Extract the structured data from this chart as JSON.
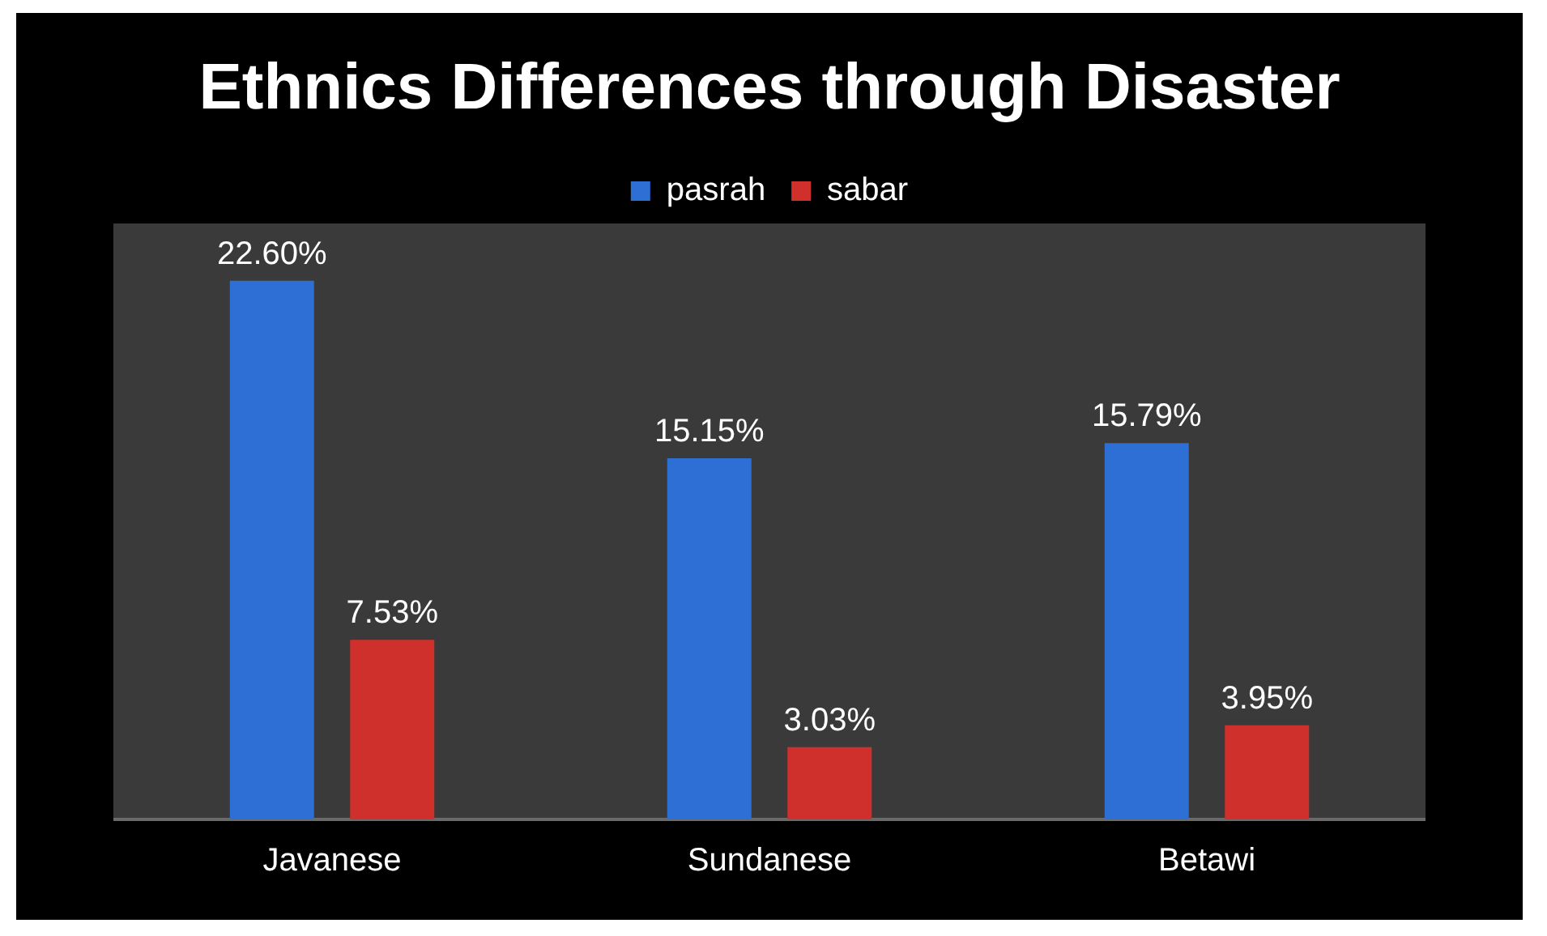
{
  "chart_data": {
    "type": "bar",
    "title": "Ethnics Differences through Disaster",
    "categories": [
      "Javanese",
      "Sundanese",
      "Betawi"
    ],
    "legend": "top",
    "series": [
      {
        "name": "pasrah",
        "color": "#2e6fd6",
        "values": [
          22.6,
          15.15,
          15.79
        ],
        "value_labels": [
          "22.60%",
          "15.15%",
          "15.79%"
        ]
      },
      {
        "name": "sabar",
        "color": "#d0302c",
        "values": [
          7.53,
          3.03,
          3.95
        ],
        "value_labels": [
          "7.53%",
          "3.03%",
          "3.95%"
        ]
      }
    ]
  }
}
